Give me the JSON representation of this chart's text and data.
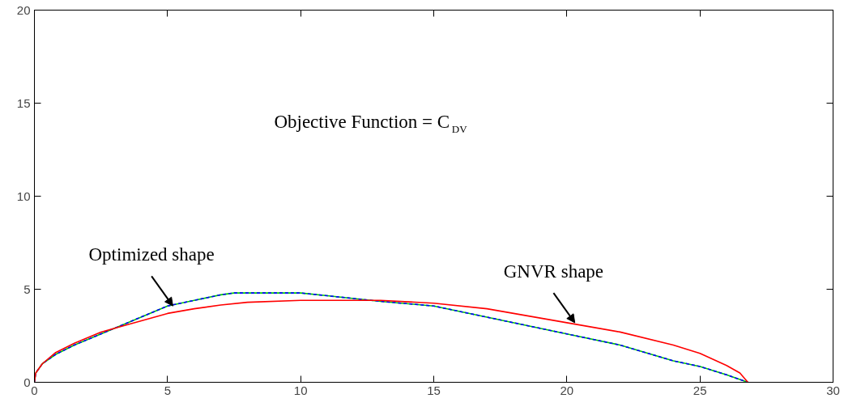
{
  "chart_data": {
    "type": "line",
    "xlim": [
      0,
      30
    ],
    "ylim": [
      0,
      20
    ],
    "xticks": [
      0,
      5,
      10,
      15,
      20,
      25,
      30
    ],
    "yticks": [
      0,
      5,
      10,
      15,
      20
    ],
    "grid": false,
    "series": [
      {
        "color": "#00cc00",
        "line_style": "solid",
        "x": [
          0,
          0.05,
          0.3,
          0.8,
          1.5,
          2.5,
          3.5,
          5,
          6,
          7,
          7.5,
          10,
          11,
          12,
          13,
          15,
          17,
          20,
          22,
          24,
          25,
          26,
          26.8
        ],
        "values": [
          0,
          0.5,
          1.0,
          1.5,
          2.0,
          2.6,
          3.2,
          4.1,
          4.4,
          4.7,
          4.8,
          4.8,
          4.65,
          4.5,
          4.35,
          4.1,
          3.5,
          2.6,
          2.0,
          1.15,
          0.85,
          0.4,
          0
        ]
      },
      {
        "color": "#0000ff",
        "line_style": "dashed",
        "x": [
          0,
          0.05,
          0.3,
          0.8,
          1.5,
          2.5,
          3.5,
          5,
          6,
          7,
          7.5,
          10,
          11,
          12,
          13,
          15,
          17,
          20,
          22,
          24,
          25,
          26,
          26.8
        ],
        "values": [
          0,
          0.5,
          1.0,
          1.5,
          2.0,
          2.6,
          3.2,
          4.1,
          4.4,
          4.7,
          4.8,
          4.8,
          4.65,
          4.5,
          4.35,
          4.1,
          3.5,
          2.6,
          2.0,
          1.15,
          0.85,
          0.4,
          0
        ]
      },
      {
        "color": "#ff0000",
        "line_style": "solid",
        "x": [
          0,
          0.05,
          0.3,
          0.8,
          1.5,
          2.5,
          3.5,
          5,
          6,
          7,
          8,
          10,
          13,
          15,
          17,
          20,
          22,
          24,
          25,
          26,
          26.5,
          26.8
        ],
        "values": [
          0,
          0.5,
          1.0,
          1.6,
          2.1,
          2.7,
          3.1,
          3.7,
          3.95,
          4.15,
          4.3,
          4.4,
          4.4,
          4.25,
          3.95,
          3.2,
          2.7,
          2.0,
          1.55,
          0.9,
          0.5,
          0
        ]
      }
    ],
    "annotations": [
      "Objective Function = C$_{DV}$",
      {
        "text": "Optimized shape",
        "x": 5.2,
        "y": 4.1
      },
      {
        "text": "GNVR shape",
        "x": 20.3,
        "y": 3.2
      }
    ]
  }
}
